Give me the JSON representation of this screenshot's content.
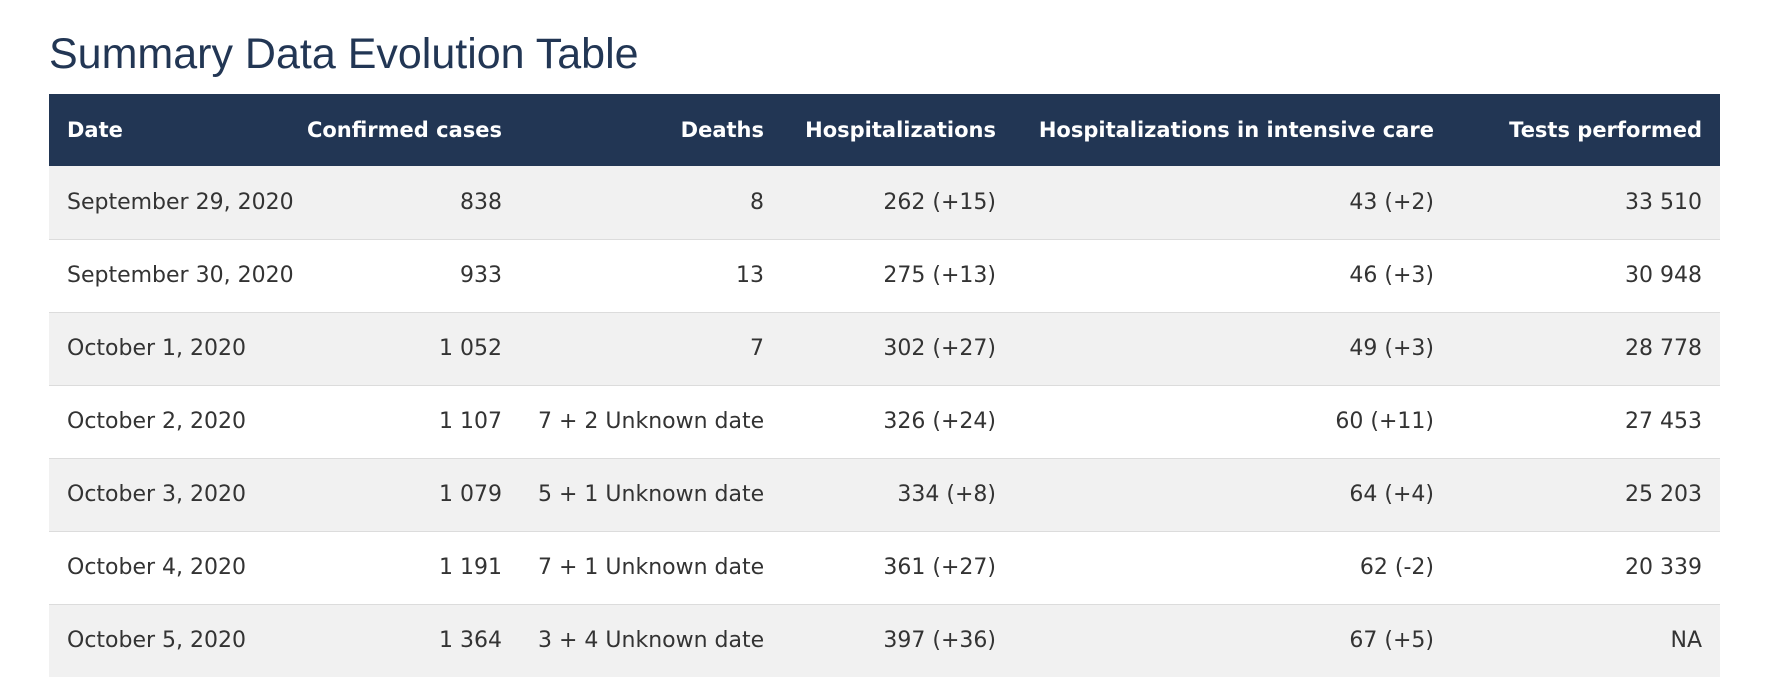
{
  "title": "Summary Data Evolution Table",
  "table": {
    "headers": [
      "Date",
      "Confirmed cases",
      "Deaths",
      "Hospitalizations",
      "Hospitalizations in intensive care",
      "Tests performed"
    ],
    "rows": [
      [
        "September 29, 2020",
        "838",
        "8",
        "262 (+15)",
        "43 (+2)",
        "33 510"
      ],
      [
        "September 30, 2020",
        "933",
        "13",
        "275 (+13)",
        "46 (+3)",
        "30 948"
      ],
      [
        "October 1, 2020",
        "1 052",
        "7",
        "302 (+27)",
        "49 (+3)",
        "28 778"
      ],
      [
        "October 2, 2020",
        "1 107",
        "7 + 2 Unknown date",
        "326 (+24)",
        "60 (+11)",
        "27 453"
      ],
      [
        "October 3, 2020",
        "1 079",
        "5 + 1 Unknown date",
        "334 (+8)",
        "64 (+4)",
        "25 203"
      ],
      [
        "October 4, 2020",
        "1 191",
        "7 + 1 Unknown date",
        "361 (+27)",
        "62 (-2)",
        "20 339"
      ],
      [
        "October 5, 2020",
        "1 364",
        "3 + 4 Unknown date",
        "397 (+36)",
        "67 (+5)",
        "NA"
      ]
    ]
  },
  "colors": {
    "header_bg": "#223654",
    "title": "#223654",
    "row_alt_bg": "#f1f1f1",
    "text": "#333333"
  }
}
